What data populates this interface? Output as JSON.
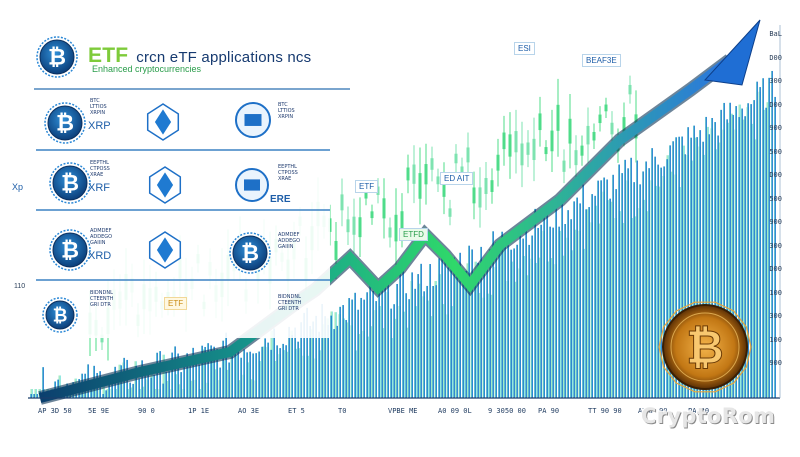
{
  "header": {
    "title_prefix": "ETF",
    "title": "crcn eTF applications ncs",
    "subtitle": "Enhanced cryptocurrencies"
  },
  "side_label": "Xp",
  "side_tick": "110",
  "chips": [
    "ESI",
    "BEAF3E",
    "ETF",
    "ED AIT",
    "ETFD",
    "ETF"
  ],
  "icon_rows": [
    {
      "coin_label": "XRP",
      "text_lines": [
        "BTC",
        "LTTIOS",
        "XRPIN"
      ]
    },
    {
      "coin_label": "XRF",
      "text_lines": [
        "EEPTHL",
        "CTPOSS",
        "XRAE"
      ]
    },
    {
      "coin_label": "XRD",
      "text_lines": [
        "ADMDEF",
        "ADDEGO",
        "GAIIIN"
      ]
    },
    {
      "coin_label": "",
      "text_lines": [
        "BIDNDNL",
        "CTEENTH",
        "GRI DTR"
      ]
    }
  ],
  "mid_labels": [
    "ERE"
  ],
  "right_ticks": [
    "BaL",
    "D00",
    "300",
    "D00",
    "900",
    "500",
    "D00",
    "500",
    "900",
    "300",
    "D00",
    "100",
    "300",
    "100",
    "900"
  ],
  "bottom_ticks": [
    "AP 3D 50",
    "5E 9E",
    "90 0",
    "1P 1E",
    "AO 3E",
    "ET 5",
    "T0",
    "VPBE ME",
    "A0 09 0L",
    "9 3050 00",
    "PA 90",
    "TT 90 90",
    "ADAF 90",
    "PA 30"
  ],
  "watermark": "CryptoRom",
  "colors": {
    "navy": "#163a70",
    "blue": "#1e88e5",
    "cyan": "#33b5e5",
    "green": "#3ddc84",
    "lime": "#7ecb3a",
    "gold": "#e0a030"
  }
}
